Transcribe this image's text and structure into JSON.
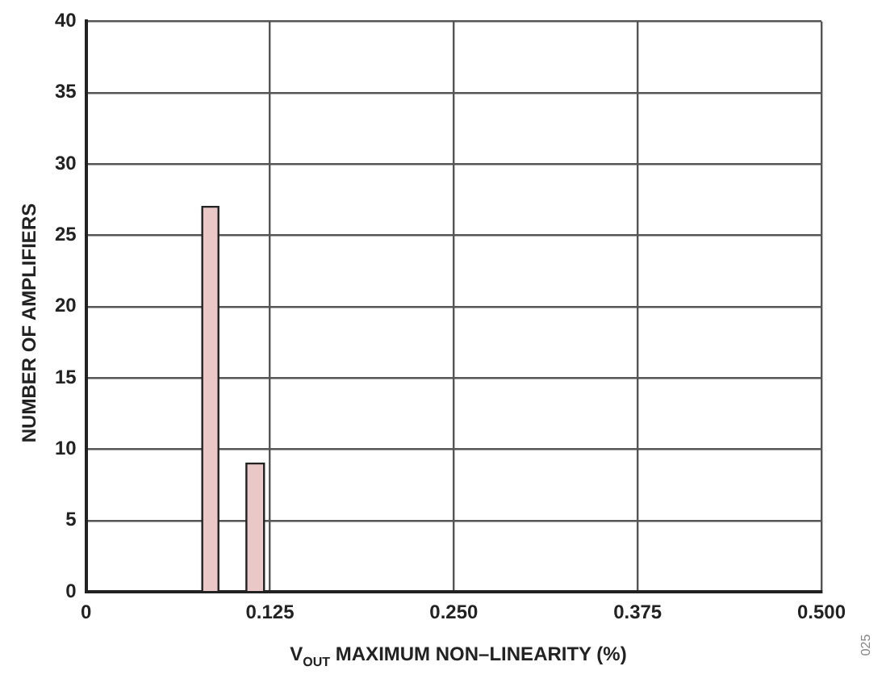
{
  "chart_data": {
    "type": "histogram",
    "xlabel": "V$_{OUT}$ MAXIMUM NON–LINEARITY (%)",
    "ylabel": "NUMBER OF AMPLIFIERS",
    "bins": [
      0.079,
      0.09,
      0.109,
      0.121
    ],
    "values": [
      27,
      0,
      9
    ],
    "color": "#eac8c8",
    "xlim": [
      0,
      0.5
    ],
    "xticks": [
      0,
      0.125,
      {
        "value": 0.25,
        "label": "0.250"
      },
      0.375,
      {
        "value": 0.5,
        "label": "0.500"
      }
    ],
    "ylim": [
      0,
      40
    ],
    "yticks": [
      0,
      5,
      10,
      15,
      20,
      25,
      30,
      35,
      40
    ],
    "grid": true,
    "legend": false,
    "annotations": [
      "025"
    ]
  }
}
